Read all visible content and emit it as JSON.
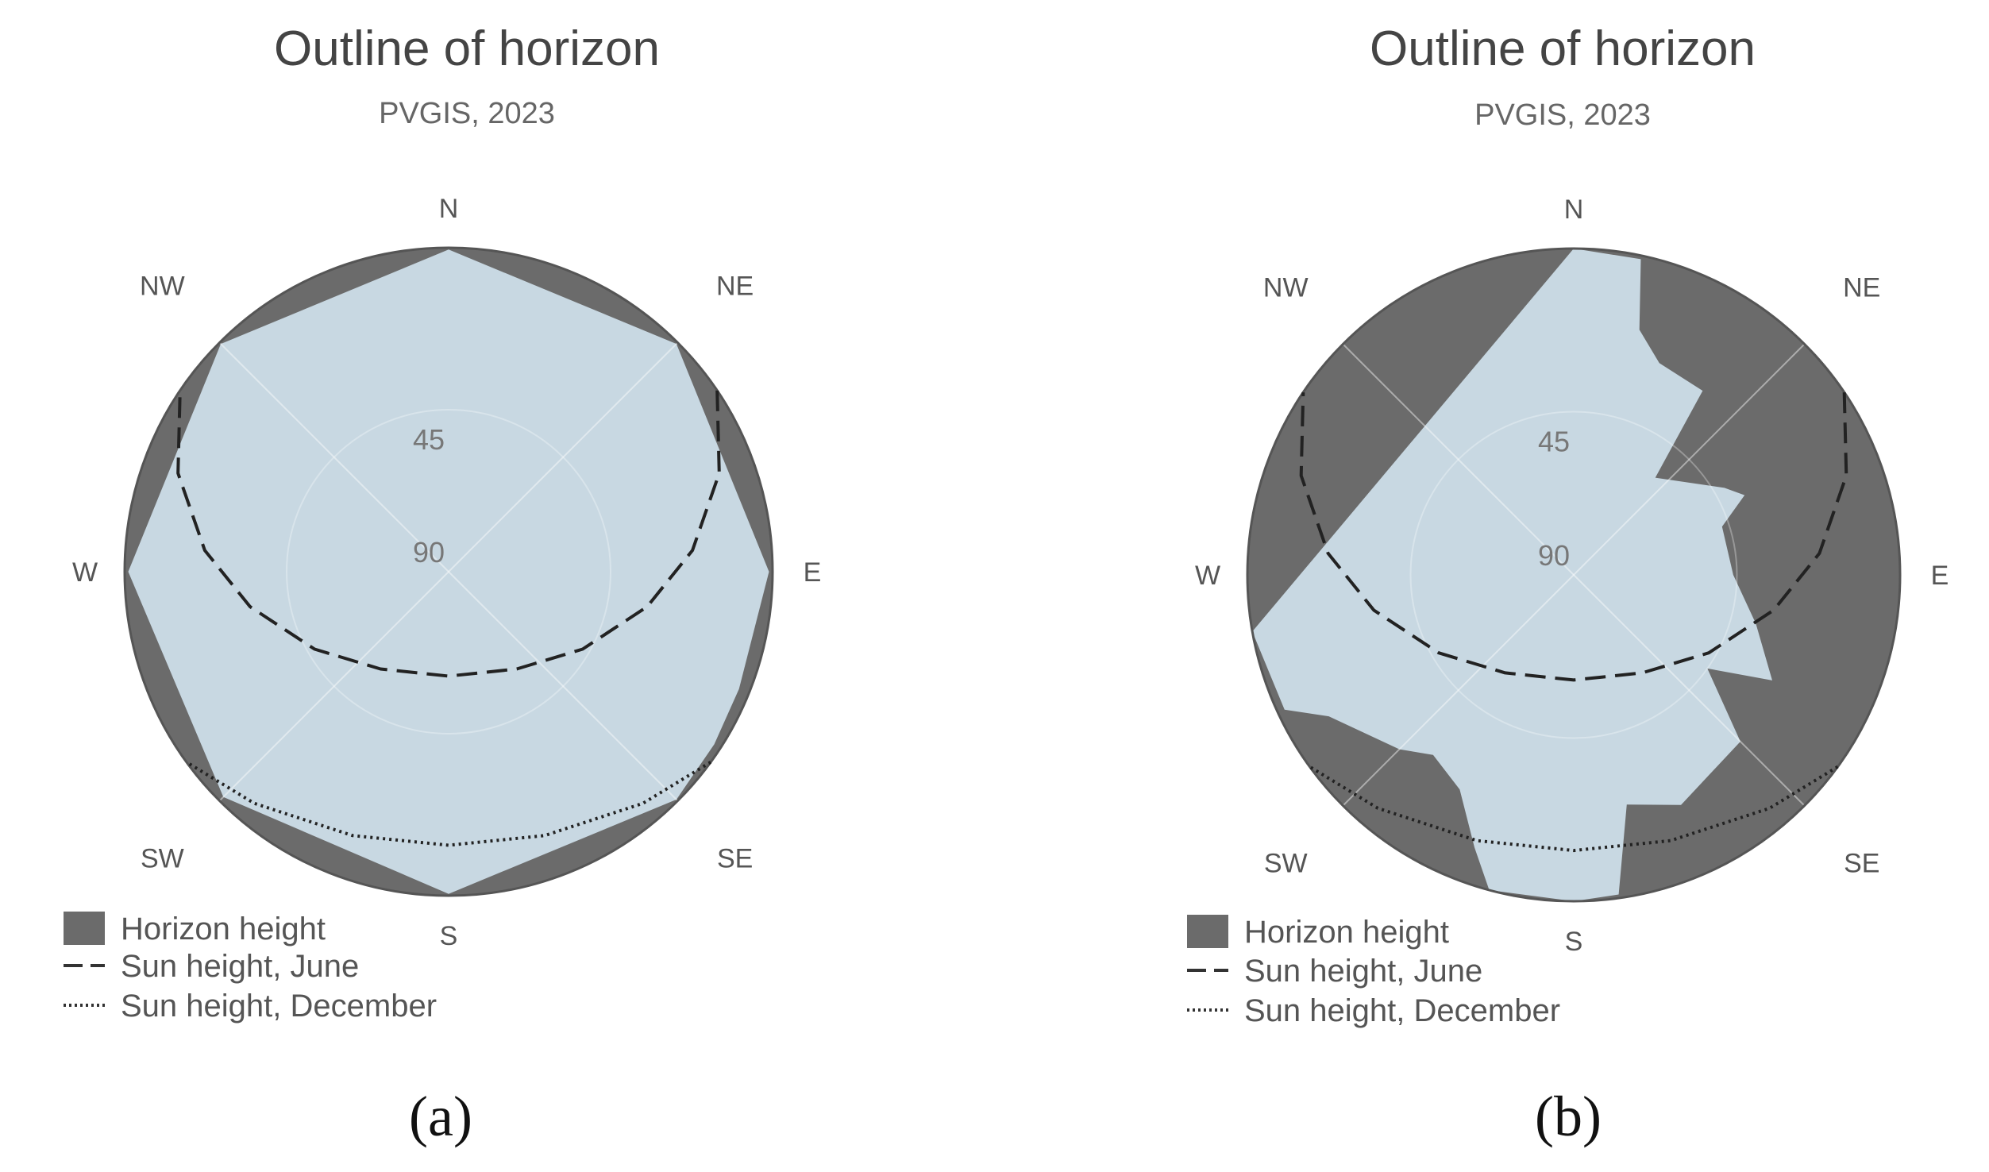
{
  "chart_data": [
    {
      "type": "polar",
      "panel_label": "(a)",
      "title": "Outline of horizon",
      "subtitle": "PVGIS, 2023",
      "directions": [
        "N",
        "NE",
        "E",
        "SE",
        "S",
        "SW",
        "W",
        "NW"
      ],
      "ring_labels": [
        "45",
        "90"
      ],
      "legend": [
        "Horizon height",
        "Sun height, June",
        "Sun height, December"
      ],
      "horizon_height": [
        {
          "azimuth": 0,
          "elevation": 0.5
        },
        {
          "azimuth": 45,
          "elevation": 0.5
        },
        {
          "azimuth": 90,
          "elevation": 1
        },
        {
          "azimuth": 112,
          "elevation": 3
        },
        {
          "azimuth": 123,
          "elevation": 2
        },
        {
          "azimuth": 135,
          "elevation": 0.5
        },
        {
          "azimuth": 180,
          "elevation": 0.5
        },
        {
          "azimuth": 225,
          "elevation": 1.5
        },
        {
          "azimuth": 270,
          "elevation": 1
        },
        {
          "azimuth": 315,
          "elevation": 0.5
        },
        {
          "azimuth": 360,
          "elevation": 0.5
        }
      ],
      "sun_height_june": [
        {
          "azimuth": 56,
          "elevation": 0
        },
        {
          "azimuth": 70,
          "elevation": 10
        },
        {
          "azimuth": 85,
          "elevation": 22
        },
        {
          "azimuth": 100,
          "elevation": 34
        },
        {
          "azimuth": 120,
          "elevation": 47
        },
        {
          "azimuth": 145,
          "elevation": 57
        },
        {
          "azimuth": 180,
          "elevation": 61
        },
        {
          "azimuth": 215,
          "elevation": 57
        },
        {
          "azimuth": 240,
          "elevation": 47
        },
        {
          "azimuth": 260,
          "elevation": 34
        },
        {
          "azimuth": 275,
          "elevation": 22
        },
        {
          "azimuth": 290,
          "elevation": 10
        },
        {
          "azimuth": 304,
          "elevation": 0
        }
      ],
      "sun_height_december": [
        {
          "azimuth": 126,
          "elevation": 0
        },
        {
          "azimuth": 140,
          "elevation": 6
        },
        {
          "azimuth": 160,
          "elevation": 12
        },
        {
          "azimuth": 180,
          "elevation": 14
        },
        {
          "azimuth": 200,
          "elevation": 12
        },
        {
          "azimuth": 220,
          "elevation": 6
        },
        {
          "azimuth": 234,
          "elevation": 0
        }
      ],
      "colors": {
        "sky": "#c8d8e2",
        "horizon": "#6b6b6b",
        "outline": "#555555"
      }
    },
    {
      "type": "polar",
      "panel_label": "(b)",
      "title": "Outline of horizon",
      "subtitle": "PVGIS, 2023",
      "directions": [
        "N",
        "NE",
        "E",
        "SE",
        "S",
        "SW",
        "W",
        "NW"
      ],
      "ring_labels": [
        "45",
        "90"
      ],
      "legend": [
        "Horizon height",
        "Sun height, June",
        "Sun height, December"
      ],
      "horizon_height": [
        {
          "azimuth": 0,
          "elevation": 0
        },
        {
          "azimuth": 12,
          "elevation": 1
        },
        {
          "azimuth": 15,
          "elevation": 20
        },
        {
          "azimuth": 22,
          "elevation": 27
        },
        {
          "azimuth": 35,
          "elevation": 28
        },
        {
          "azimuth": 40,
          "elevation": 55
        },
        {
          "azimuth": 60,
          "elevation": 42
        },
        {
          "azimuth": 65,
          "elevation": 38
        },
        {
          "azimuth": 72,
          "elevation": 47
        },
        {
          "azimuth": 90,
          "elevation": 46
        },
        {
          "azimuth": 105,
          "elevation": 38
        },
        {
          "azimuth": 118,
          "elevation": 28
        },
        {
          "azimuth": 125,
          "elevation": 45
        },
        {
          "azimuth": 135,
          "elevation": 25
        },
        {
          "azimuth": 155,
          "elevation": 20
        },
        {
          "azimuth": 167,
          "elevation": 25
        },
        {
          "azimuth": 172,
          "elevation": 1
        },
        {
          "azimuth": 180,
          "elevation": 0
        },
        {
          "azimuth": 195,
          "elevation": 0
        },
        {
          "azimuth": 200,
          "elevation": 10
        },
        {
          "azimuth": 208,
          "elevation": 23
        },
        {
          "azimuth": 218,
          "elevation": 27
        },
        {
          "azimuth": 225,
          "elevation": 22
        },
        {
          "azimuth": 240,
          "elevation": 12
        },
        {
          "azimuth": 245,
          "elevation": 2
        },
        {
          "azimuth": 260,
          "elevation": 0
        },
        {
          "azimuth": 360,
          "elevation": 0
        }
      ],
      "sun_height_june": [
        {
          "azimuth": 56,
          "elevation": 0
        },
        {
          "azimuth": 70,
          "elevation": 10
        },
        {
          "azimuth": 85,
          "elevation": 22
        },
        {
          "azimuth": 100,
          "elevation": 34
        },
        {
          "azimuth": 120,
          "elevation": 47
        },
        {
          "azimuth": 145,
          "elevation": 57
        },
        {
          "azimuth": 180,
          "elevation": 61
        },
        {
          "azimuth": 215,
          "elevation": 57
        },
        {
          "azimuth": 240,
          "elevation": 47
        },
        {
          "azimuth": 260,
          "elevation": 34
        },
        {
          "azimuth": 275,
          "elevation": 22
        },
        {
          "azimuth": 290,
          "elevation": 10
        },
        {
          "azimuth": 304,
          "elevation": 0
        }
      ],
      "sun_height_december": [
        {
          "azimuth": 126,
          "elevation": 0
        },
        {
          "azimuth": 140,
          "elevation": 6
        },
        {
          "azimuth": 160,
          "elevation": 12
        },
        {
          "azimuth": 180,
          "elevation": 14
        },
        {
          "azimuth": 200,
          "elevation": 12
        },
        {
          "azimuth": 220,
          "elevation": 6
        },
        {
          "azimuth": 234,
          "elevation": 0
        }
      ],
      "colors": {
        "sky": "#c8d8e2",
        "horizon": "#6b6b6b",
        "outline": "#555555"
      }
    }
  ]
}
